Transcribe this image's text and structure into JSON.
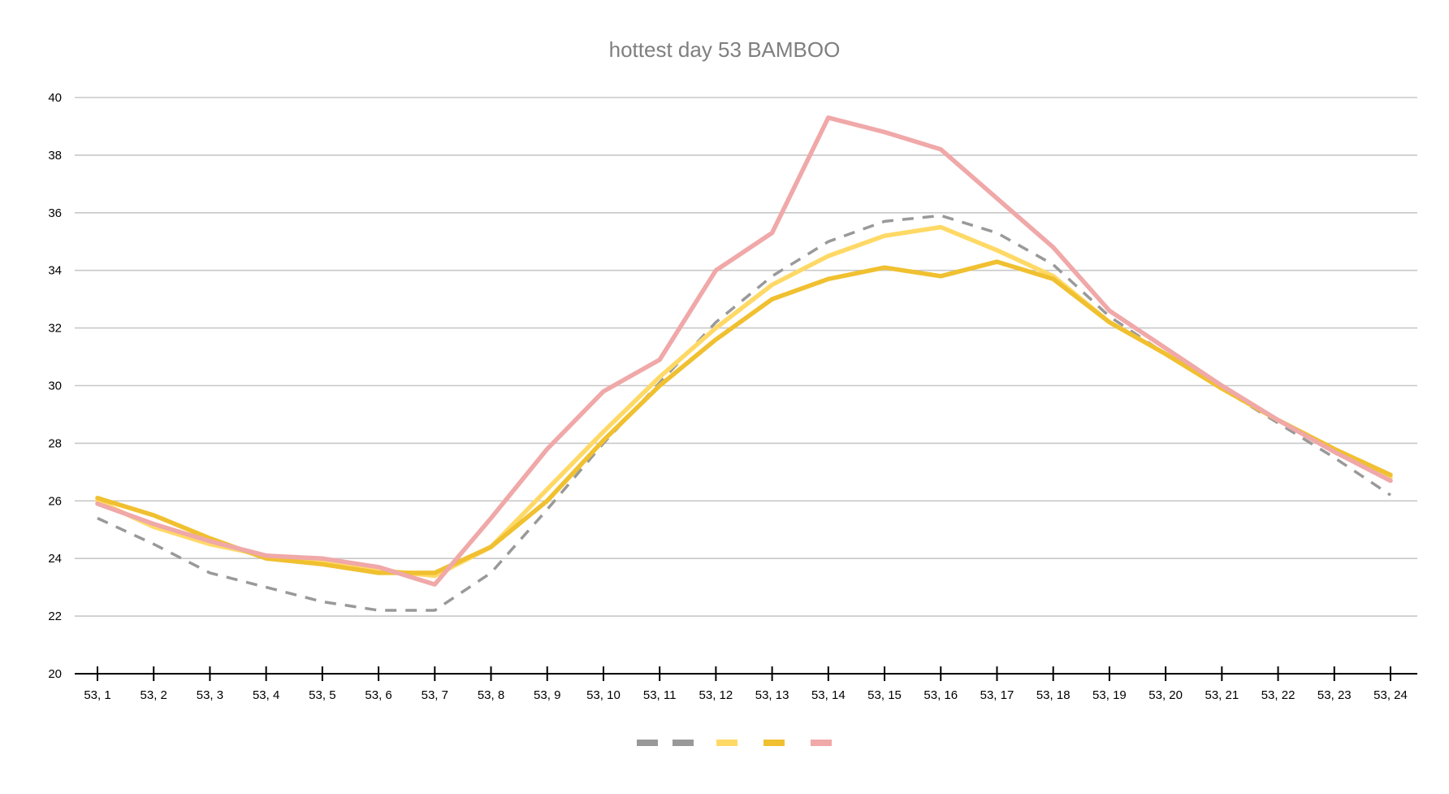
{
  "chart_data": {
    "type": "line",
    "title": "hottest day 53 BAMBOO",
    "xlabel": "",
    "ylabel": "",
    "ylim": [
      20,
      40
    ],
    "yticks": [
      20,
      22,
      24,
      26,
      28,
      30,
      32,
      34,
      36,
      38,
      40
    ],
    "grid": true,
    "legend_position": "bottom",
    "categories": [
      "53, 1",
      "53, 2",
      "53, 3",
      "53, 4",
      "53, 5",
      "53, 6",
      "53, 7",
      "53, 8",
      "53, 9",
      "53, 10",
      "53, 11",
      "53, 12",
      "53, 13",
      "53, 14",
      "53, 15",
      "53, 16",
      "53, 17",
      "53, 18",
      "53, 19",
      "53, 20",
      "53, 21",
      "53, 22",
      "53, 23",
      "53, 24"
    ],
    "series": [
      {
        "color": "#999999",
        "dash": true,
        "values": [
          25.4,
          24.5,
          23.5,
          23.0,
          22.5,
          22.2,
          22.2,
          23.5,
          25.7,
          28.0,
          30.1,
          32.2,
          33.8,
          35.0,
          35.7,
          35.9,
          35.3,
          34.2,
          32.4,
          31.1,
          29.9,
          28.7,
          27.5,
          26.2
        ]
      },
      {
        "color": "#ffd966",
        "dash": false,
        "values": [
          26.0,
          25.1,
          24.5,
          24.1,
          23.9,
          23.6,
          23.4,
          24.4,
          26.4,
          28.4,
          30.3,
          32.0,
          33.5,
          34.5,
          35.2,
          35.5,
          34.7,
          33.8,
          32.2,
          31.1,
          29.9,
          28.8,
          27.8,
          26.8
        ]
      },
      {
        "color": "#f0c030",
        "dash": false,
        "values": [
          26.1,
          25.5,
          24.7,
          24.0,
          23.8,
          23.5,
          23.5,
          24.4,
          26.0,
          28.1,
          30.0,
          31.6,
          33.0,
          33.7,
          34.1,
          33.8,
          34.3,
          33.7,
          32.2,
          31.1,
          29.9,
          28.8,
          27.8,
          26.9
        ]
      },
      {
        "color": "#f0a8a8",
        "dash": false,
        "values": [
          25.9,
          25.2,
          24.6,
          24.1,
          24.0,
          23.7,
          23.1,
          25.4,
          27.8,
          29.8,
          30.9,
          34.0,
          35.3,
          39.3,
          38.8,
          38.2,
          36.5,
          34.8,
          32.6,
          31.3,
          30.0,
          28.8,
          27.7,
          26.7
        ]
      }
    ],
    "legend": [
      {
        "color": "#999999",
        "dash": false
      },
      {
        "color": "#999999",
        "dash": true
      },
      {
        "color": "#ffd966",
        "dash": false
      },
      {
        "color": "#f0c030",
        "dash": false
      },
      {
        "color": "#f0a8a8",
        "dash": false
      }
    ]
  }
}
